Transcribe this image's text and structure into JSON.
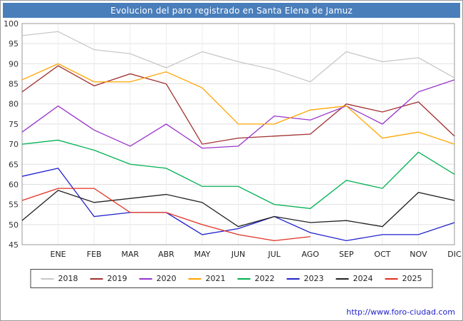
{
  "title": "Evolucion del paro registrado en Santa Elena de Jamuz",
  "colors": {
    "title_bar": "#4a7ebb",
    "grid": "#e0e0e0",
    "grid_vertical": "#ececec",
    "plot_border": "#999999",
    "axis_text": "#333333",
    "url_text": "#2222cc"
  },
  "footer": {
    "url": "http://www.foro-ciudad.com"
  },
  "chart_data": {
    "type": "line",
    "title": "Evolucion del paro registrado en Santa Elena de Jamuz",
    "categories": [
      "",
      "ENE",
      "FEB",
      "MAR",
      "ABR",
      "MAY",
      "JUN",
      "JUL",
      "AGO",
      "SEP",
      "OCT",
      "NOV",
      "DIC"
    ],
    "xlabel": "",
    "ylabel": "",
    "ylim": [
      45,
      100
    ],
    "ytick_step": 5,
    "grid": true,
    "legend_position": "bottom",
    "series": [
      {
        "name": "2018",
        "color": "#c8c8c8",
        "values": [
          97,
          98,
          93.5,
          92.5,
          89,
          93,
          90.5,
          88.5,
          85.5,
          93,
          90.5,
          91.5,
          86.5
        ]
      },
      {
        "name": "2019",
        "color": "#a03030",
        "values": [
          83,
          89.5,
          84.5,
          87.5,
          85,
          70,
          71.5,
          72,
          72.5,
          80,
          78,
          80.5,
          72
        ]
      },
      {
        "name": "2020",
        "color": "#9933cc",
        "values": [
          73,
          79.5,
          73.5,
          69.5,
          75,
          69,
          69.5,
          77,
          76,
          79.5,
          75,
          83,
          86
        ]
      },
      {
        "name": "2021",
        "color": "#ffa500",
        "values": [
          86,
          90,
          85.5,
          85.5,
          88,
          84,
          75,
          75,
          78.5,
          79.5,
          71.5,
          73,
          70
        ]
      },
      {
        "name": "2022",
        "color": "#00b050",
        "values": [
          70,
          71,
          68.5,
          65,
          64,
          59.5,
          59.5,
          55,
          54,
          61,
          59,
          68,
          62.5
        ]
      },
      {
        "name": "2023",
        "color": "#2222cc",
        "values": [
          62,
          64,
          52,
          53,
          53,
          47.5,
          49,
          52,
          48,
          46,
          47.5,
          47.5,
          50.5
        ]
      },
      {
        "name": "2024",
        "color": "#222222",
        "values": [
          51,
          58.5,
          55.5,
          56.5,
          57.5,
          55.5,
          49.5,
          52,
          50.5,
          51,
          49.5,
          58,
          56
        ]
      },
      {
        "name": "2025",
        "color": "#e03020",
        "values": [
          56,
          59,
          59,
          53,
          53,
          50,
          47.5,
          46,
          47
        ]
      }
    ]
  }
}
